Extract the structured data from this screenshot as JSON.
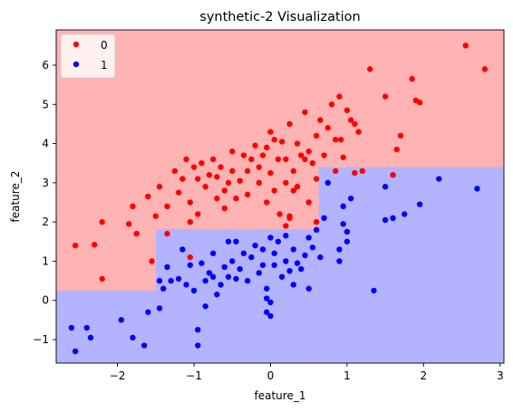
{
  "chart_data": {
    "type": "scatter",
    "title": "synthetic-2 Visualization",
    "xlabel": "feature_1",
    "ylabel": "feature_2",
    "xlim": [
      -2.8,
      3.05
    ],
    "ylim": [
      -1.6,
      6.9
    ],
    "xticks": [
      -2,
      -1,
      0,
      1,
      2,
      3
    ],
    "xtick_labels": [
      "−2",
      "−1",
      "0",
      "1",
      "2",
      "3"
    ],
    "yticks": [
      -1,
      0,
      1,
      2,
      3,
      4,
      5,
      6
    ],
    "ytick_labels": [
      "−1",
      "0",
      "1",
      "2",
      "3",
      "4",
      "5",
      "6"
    ],
    "grid": false,
    "legend": {
      "position": "top-left",
      "entries": [
        "0",
        "1"
      ]
    },
    "colors": {
      "0": "#ff0000",
      "1": "#0000ff",
      "region_0": "#ffb3b3",
      "region_1": "#b3b3ff"
    },
    "decision_regions": [
      {
        "class": "1",
        "x": [
          -2.8,
          -1.5
        ],
        "y": [
          -1.6,
          0.25
        ]
      },
      {
        "class": "1",
        "x": [
          -1.5,
          0.63
        ],
        "y": [
          -1.6,
          1.82
        ]
      },
      {
        "class": "1",
        "x": [
          0.63,
          3.05
        ],
        "y": [
          -1.6,
          3.4
        ]
      }
    ],
    "series": [
      {
        "name": "0",
        "color": "#ff0000",
        "points": [
          [
            -2.55,
            1.4
          ],
          [
            -2.3,
            1.42
          ],
          [
            -2.2,
            2.0
          ],
          [
            -1.85,
            1.95
          ],
          [
            -1.8,
            2.4
          ],
          [
            -1.75,
            1.7
          ],
          [
            -1.6,
            2.65
          ],
          [
            -1.55,
            1.0
          ],
          [
            -1.5,
            2.15
          ],
          [
            -1.45,
            2.9
          ],
          [
            -1.35,
            2.4
          ],
          [
            -1.25,
            3.3
          ],
          [
            -1.2,
            2.75
          ],
          [
            -1.15,
            3.1
          ],
          [
            -1.1,
            3.6
          ],
          [
            -1.05,
            2.0
          ],
          [
            -1.05,
            2.5
          ],
          [
            -1.0,
            3.4
          ],
          [
            -0.95,
            2.2
          ],
          [
            -0.95,
            3.1
          ],
          [
            -0.9,
            3.5
          ],
          [
            -0.85,
            2.9
          ],
          [
            -0.8,
            3.2
          ],
          [
            -0.75,
            3.6
          ],
          [
            -0.7,
            3.15
          ],
          [
            -0.7,
            2.6
          ],
          [
            -0.65,
            3.4
          ],
          [
            -0.6,
            2.8
          ],
          [
            -0.55,
            3.0
          ],
          [
            -0.5,
            3.3
          ],
          [
            -0.5,
            3.8
          ],
          [
            -0.45,
            2.6
          ],
          [
            -0.4,
            3.05
          ],
          [
            -0.35,
            3.7
          ],
          [
            -0.3,
            3.3
          ],
          [
            -0.3,
            2.7
          ],
          [
            -0.25,
            3.6
          ],
          [
            -0.2,
            3.95
          ],
          [
            -0.15,
            3.0
          ],
          [
            -0.15,
            3.4
          ],
          [
            -0.1,
            3.7
          ],
          [
            -0.05,
            3.9
          ],
          [
            -0.05,
            2.5
          ],
          [
            0.0,
            4.3
          ],
          [
            0.0,
            3.25
          ],
          [
            0.05,
            4.1
          ],
          [
            0.05,
            2.8
          ],
          [
            0.1,
            3.6
          ],
          [
            0.12,
            2.2
          ],
          [
            0.15,
            4.05
          ],
          [
            0.2,
            3.0
          ],
          [
            0.2,
            3.6
          ],
          [
            0.25,
            4.5
          ],
          [
            0.25,
            2.1
          ],
          [
            0.3,
            3.3
          ],
          [
            0.3,
            2.8
          ],
          [
            0.35,
            4.0
          ],
          [
            0.35,
            2.9
          ],
          [
            0.4,
            3.7
          ],
          [
            0.45,
            4.8
          ],
          [
            0.45,
            3.6
          ],
          [
            0.5,
            3.8
          ],
          [
            0.5,
            2.5
          ],
          [
            0.55,
            3.5
          ],
          [
            0.6,
            4.2
          ],
          [
            0.6,
            3.1
          ],
          [
            0.65,
            4.6
          ],
          [
            0.7,
            3.7
          ],
          [
            0.75,
            4.4
          ],
          [
            0.8,
            5.0
          ],
          [
            0.85,
            4.1
          ],
          [
            0.9,
            5.2
          ],
          [
            0.92,
            4.1
          ],
          [
            0.95,
            3.65
          ],
          [
            1.0,
            4.85
          ],
          [
            1.05,
            4.6
          ],
          [
            1.1,
            4.5
          ],
          [
            1.15,
            4.3
          ],
          [
            1.2,
            3.3
          ],
          [
            1.3,
            5.9
          ],
          [
            1.5,
            5.2
          ],
          [
            1.6,
            3.2
          ],
          [
            1.65,
            3.85
          ],
          [
            1.7,
            4.2
          ],
          [
            1.85,
            5.65
          ],
          [
            1.9,
            5.1
          ],
          [
            1.95,
            5.05
          ],
          [
            2.55,
            6.5
          ],
          [
            2.8,
            5.9
          ],
          [
            -2.2,
            0.55
          ],
          [
            -1.35,
            1.7
          ],
          [
            -1.05,
            1.1
          ],
          [
            -0.6,
            2.35
          ],
          [
            0.2,
            1.9
          ],
          [
            0.25,
            2.15
          ],
          [
            0.6,
            2.0
          ],
          [
            0.85,
            3.3
          ],
          [
            1.1,
            3.25
          ]
        ]
      },
      {
        "name": "1",
        "color": "#0000ff",
        "points": [
          [
            -2.6,
            -0.7
          ],
          [
            -2.55,
            -1.3
          ],
          [
            -2.4,
            -0.7
          ],
          [
            -2.35,
            -0.95
          ],
          [
            -1.95,
            -0.5
          ],
          [
            -1.8,
            -0.95
          ],
          [
            -1.65,
            -1.15
          ],
          [
            -1.6,
            -0.3
          ],
          [
            -1.45,
            -0.2
          ],
          [
            -1.45,
            0.5
          ],
          [
            -1.4,
            0.3
          ],
          [
            -1.35,
            0.85
          ],
          [
            -1.3,
            0.5
          ],
          [
            -1.2,
            0.55
          ],
          [
            -1.15,
            1.3
          ],
          [
            -1.1,
            0.4
          ],
          [
            -1.05,
            0.9
          ],
          [
            -1.0,
            0.25
          ],
          [
            -0.95,
            -1.15
          ],
          [
            -0.95,
            -0.75
          ],
          [
            -0.9,
            0.95
          ],
          [
            -0.85,
            0.5
          ],
          [
            -0.8,
            0.7
          ],
          [
            -0.75,
            1.2
          ],
          [
            -0.75,
            0.6
          ],
          [
            -0.7,
            0.15
          ],
          [
            -0.65,
            0.4
          ],
          [
            -0.6,
            0.85
          ],
          [
            -0.55,
            1.5
          ],
          [
            -0.55,
            0.6
          ],
          [
            -0.5,
            1.0
          ],
          [
            -0.45,
            0.55
          ],
          [
            -0.45,
            1.5
          ],
          [
            -0.4,
            0.8
          ],
          [
            -0.35,
            1.2
          ],
          [
            -0.3,
            0.5
          ],
          [
            -0.25,
            1.1
          ],
          [
            -0.2,
            1.4
          ],
          [
            -0.15,
            0.7
          ],
          [
            -0.1,
            0.9
          ],
          [
            -0.1,
            1.3
          ],
          [
            -0.05,
            0.3
          ],
          [
            -0.05,
            -0.3
          ],
          [
            0.0,
            -0.4
          ],
          [
            0.0,
            1.6
          ],
          [
            0.05,
            1.2
          ],
          [
            0.05,
            0.9
          ],
          [
            0.1,
            1.5
          ],
          [
            0.15,
            0.6
          ],
          [
            0.2,
            1.0
          ],
          [
            0.2,
            1.65
          ],
          [
            0.25,
            0.75
          ],
          [
            0.3,
            1.3
          ],
          [
            0.3,
            0.4
          ],
          [
            0.35,
            0.95
          ],
          [
            0.4,
            0.8
          ],
          [
            0.45,
            1.15
          ],
          [
            0.5,
            1.6
          ],
          [
            0.5,
            0.3
          ],
          [
            0.55,
            1.35
          ],
          [
            0.6,
            1.8
          ],
          [
            0.65,
            1.1
          ],
          [
            0.7,
            2.1
          ],
          [
            0.75,
            3.0
          ],
          [
            0.9,
            1.3
          ],
          [
            0.9,
            1.0
          ],
          [
            0.95,
            2.4
          ],
          [
            0.95,
            1.95
          ],
          [
            1.0,
            1.5
          ],
          [
            1.0,
            1.75
          ],
          [
            1.05,
            2.6
          ],
          [
            1.35,
            0.25
          ],
          [
            1.5,
            2.9
          ],
          [
            1.5,
            2.05
          ],
          [
            1.6,
            2.1
          ],
          [
            1.75,
            2.2
          ],
          [
            1.95,
            2.45
          ],
          [
            2.2,
            3.1
          ],
          [
            2.7,
            2.85
          ],
          [
            -0.85,
            -0.15
          ],
          [
            0.0,
            -0.05
          ],
          [
            -0.05,
            0.05
          ]
        ]
      }
    ]
  }
}
